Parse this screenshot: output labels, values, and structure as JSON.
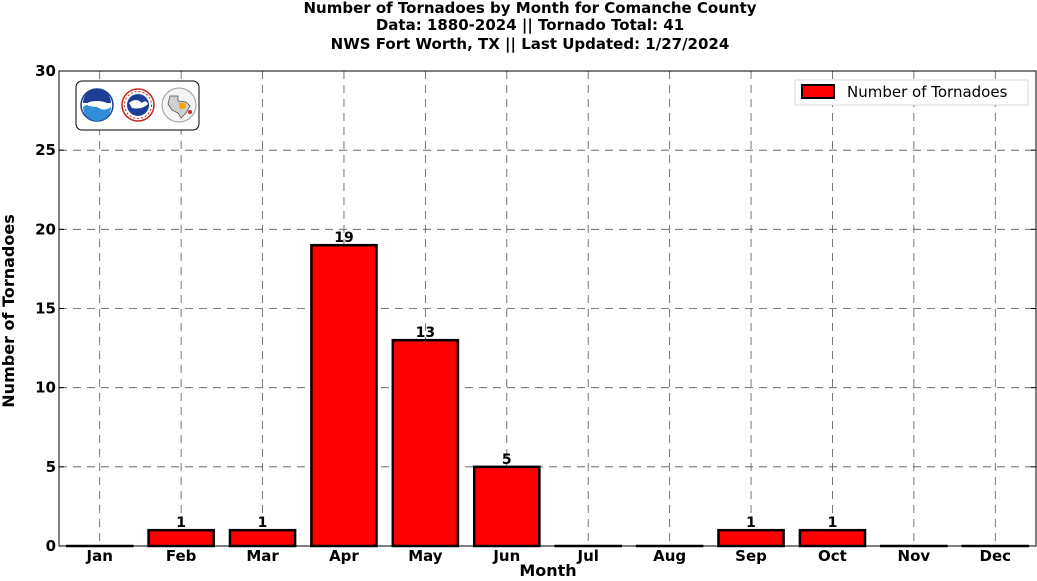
{
  "titles": {
    "line1": "Number of Tornadoes by Month for Comanche County",
    "line2": "Data: 1880-2024 || Tornado Total: 41",
    "line3": "NWS Fort Worth, TX || Last Updated: 1/27/2024"
  },
  "logos": [
    "noaa-logo",
    "national-weather-service-logo",
    "nws-fort-worth-texas-logo"
  ],
  "chart_data": {
    "type": "bar",
    "categories": [
      "Jan",
      "Feb",
      "Mar",
      "Apr",
      "May",
      "Jun",
      "Jul",
      "Aug",
      "Sep",
      "Oct",
      "Nov",
      "Dec"
    ],
    "series": [
      {
        "name": "Number of Tornadoes",
        "values": [
          0,
          1,
          1,
          19,
          13,
          5,
          0,
          0,
          1,
          1,
          0,
          0
        ]
      }
    ],
    "data_labels": [
      "",
      "1",
      "1",
      "19",
      "13",
      "5",
      "",
      "",
      "1",
      "1",
      "",
      ""
    ],
    "xlabel": "Month",
    "ylabel": "Number of Tornadoes",
    "ylim": [
      0,
      30
    ],
    "yticks": [
      0,
      5,
      10,
      15,
      20,
      25,
      30
    ],
    "grid": true,
    "legend_position": "top-right",
    "bar_color": "#ff0000",
    "edge_color": "#000000"
  }
}
